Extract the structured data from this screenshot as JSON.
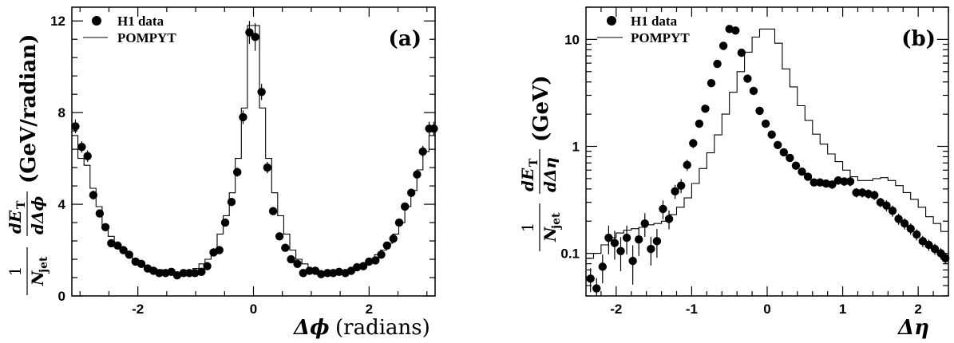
{
  "chart_data": [
    {
      "type": "scatter",
      "tag": "(a)",
      "legend": {
        "data_label": "H1 data",
        "model_label": "POMPYT",
        "position": "top-left"
      },
      "xlabel": {
        "symbol": "Δϕ",
        "unit": "(radians)"
      },
      "ylabel": {
        "prefix": "1",
        "denom": "N",
        "denom_sub": "jet",
        "num": "dE",
        "num_sub": "T",
        "den2": "dΔϕ",
        "unit": "(GeV/radian)"
      },
      "xlim": [
        -3.14159,
        3.14159
      ],
      "ylim": [
        0,
        12.6
      ],
      "yscale": "linear",
      "xticks": [
        -2,
        0,
        2
      ],
      "xtick_labels": [
        "-2",
        "0",
        "2"
      ],
      "yticks": [
        0,
        4,
        8,
        12
      ],
      "ytick_labels": [
        "0",
        "4",
        "8",
        "12"
      ],
      "series": [
        {
          "name": "H1 data",
          "marker": "circle",
          "x": [
            -3.08,
            -2.97,
            -2.87,
            -2.77,
            -2.66,
            -2.56,
            -2.46,
            -2.35,
            -2.25,
            -2.15,
            -2.04,
            -1.94,
            -1.83,
            -1.73,
            -1.63,
            -1.52,
            -1.42,
            -1.32,
            -1.21,
            -1.11,
            -1.01,
            -0.9,
            -0.8,
            -0.69,
            -0.59,
            -0.49,
            -0.38,
            -0.28,
            -0.18,
            -0.07,
            0.03,
            0.14,
            0.24,
            0.34,
            0.45,
            0.55,
            0.65,
            0.76,
            0.86,
            0.97,
            1.07,
            1.17,
            1.28,
            1.38,
            1.48,
            1.59,
            1.69,
            1.79,
            1.9,
            2.0,
            2.11,
            2.21,
            2.31,
            2.42,
            2.52,
            2.62,
            2.73,
            2.83,
            2.93,
            3.04,
            3.12
          ],
          "y": [
            7.4,
            6.5,
            6.1,
            4.4,
            3.6,
            3.0,
            2.3,
            2.2,
            2.0,
            1.8,
            1.5,
            1.4,
            1.2,
            1.1,
            1.0,
            1.0,
            1.05,
            0.9,
            1.0,
            1.0,
            1.0,
            1.05,
            1.3,
            1.9,
            2.0,
            3.2,
            4.1,
            5.4,
            7.8,
            11.5,
            11.3,
            8.9,
            5.6,
            3.7,
            2.6,
            2.1,
            1.6,
            1.4,
            1.0,
            1.1,
            1.1,
            0.95,
            1.0,
            1.0,
            1.05,
            1.0,
            1.1,
            1.25,
            1.3,
            1.5,
            1.55,
            1.8,
            2.2,
            2.5,
            3.2,
            3.9,
            4.5,
            5.3,
            6.3,
            7.3,
            7.3
          ],
          "err": [
            0.3,
            0.25,
            0.25,
            0.2,
            0.15,
            0.12,
            0.1,
            0.1,
            0.1,
            0.08,
            0.08,
            0.07,
            0.07,
            0.06,
            0.06,
            0.06,
            0.06,
            0.06,
            0.06,
            0.06,
            0.06,
            0.06,
            0.08,
            0.1,
            0.1,
            0.12,
            0.15,
            0.2,
            0.3,
            0.5,
            0.6,
            0.35,
            0.25,
            0.15,
            0.12,
            0.1,
            0.08,
            0.07,
            0.06,
            0.06,
            0.06,
            0.06,
            0.06,
            0.06,
            0.06,
            0.06,
            0.06,
            0.07,
            0.07,
            0.08,
            0.08,
            0.09,
            0.1,
            0.12,
            0.14,
            0.15,
            0.18,
            0.2,
            0.25,
            0.3,
            0.3
          ]
        },
        {
          "name": "POMPYT",
          "style": "histogram",
          "bin_edges": [
            -3.1416,
            -3.0369,
            -2.9322,
            -2.8274,
            -2.7227,
            -2.618,
            -2.5133,
            -2.4086,
            -2.3038,
            -2.1991,
            -2.0944,
            -1.9897,
            -1.885,
            -1.7802,
            -1.6755,
            -1.5708,
            -1.4661,
            -1.3614,
            -1.2566,
            -1.1519,
            -1.0472,
            -0.9425,
            -0.8378,
            -0.733,
            -0.6283,
            -0.5236,
            -0.4189,
            -0.3142,
            -0.2094,
            -0.1047,
            0.0,
            0.1047,
            0.2094,
            0.3142,
            0.4189,
            0.5236,
            0.6283,
            0.733,
            0.8378,
            0.9425,
            1.0472,
            1.1519,
            1.2566,
            1.3614,
            1.4661,
            1.5708,
            1.6755,
            1.7802,
            1.885,
            1.9897,
            2.0944,
            2.1991,
            2.3038,
            2.4086,
            2.5133,
            2.618,
            2.7227,
            2.8274,
            2.9322,
            3.0369,
            3.1416
          ],
          "values": [
            7.0,
            6.0,
            5.7,
            4.7,
            3.9,
            3.1,
            2.6,
            2.2,
            2.0,
            1.8,
            1.6,
            1.45,
            1.3,
            1.2,
            1.15,
            1.1,
            1.05,
            1.0,
            1.05,
            1.1,
            1.2,
            1.4,
            1.6,
            2.0,
            2.7,
            3.5,
            4.5,
            6.0,
            8.2,
            11.8,
            11.8,
            8.2,
            6.0,
            4.5,
            3.5,
            2.7,
            2.0,
            1.6,
            1.4,
            1.2,
            1.1,
            1.05,
            1.0,
            1.05,
            1.1,
            1.15,
            1.2,
            1.3,
            1.45,
            1.6,
            1.8,
            2.0,
            2.3,
            2.7,
            3.2,
            3.9,
            4.6,
            5.5,
            6.3,
            7.0
          ]
        }
      ]
    },
    {
      "type": "scatter",
      "tag": "(b)",
      "legend": {
        "data_label": "H1 data",
        "model_label": "POMPYT",
        "position": "top-left"
      },
      "xlabel": {
        "symbol": "Δη",
        "unit": ""
      },
      "ylabel": {
        "prefix": "1",
        "denom": "N",
        "denom_sub": "jet",
        "num": "dE",
        "num_sub": "T",
        "den2": "dΔη",
        "unit": "(GeV)"
      },
      "xlim": [
        -2.4,
        2.4
      ],
      "ylim": [
        0.04,
        20
      ],
      "yscale": "log",
      "xticks": [
        -2,
        -1,
        0,
        1,
        2
      ],
      "xtick_labels": [
        "-2",
        "-1",
        "0",
        "1",
        "2"
      ],
      "yticks": [
        0.1,
        1,
        10
      ],
      "ytick_labels": [
        "0.1",
        "1",
        "10"
      ],
      "series": [
        {
          "name": "H1 data",
          "marker": "circle",
          "x": [
            -2.34,
            -2.26,
            -2.18,
            -2.1,
            -2.02,
            -1.94,
            -1.86,
            -1.78,
            -1.7,
            -1.62,
            -1.54,
            -1.46,
            -1.38,
            -1.3,
            -1.22,
            -1.14,
            -1.06,
            -0.98,
            -0.9,
            -0.82,
            -0.74,
            -0.66,
            -0.58,
            -0.5,
            -0.42,
            -0.34,
            -0.26,
            -0.18,
            -0.1,
            -0.02,
            0.06,
            0.14,
            0.22,
            0.3,
            0.38,
            0.46,
            0.54,
            0.62,
            0.7,
            0.78,
            0.86,
            0.94,
            1.02,
            1.1,
            1.18,
            1.26,
            1.34,
            1.42,
            1.5,
            1.58,
            1.66,
            1.74,
            1.82,
            1.9,
            1.98,
            2.06,
            2.14,
            2.22,
            2.3,
            2.36
          ],
          "y": [
            0.058,
            0.047,
            0.075,
            0.14,
            0.125,
            0.105,
            0.14,
            0.085,
            0.135,
            0.19,
            0.11,
            0.13,
            0.26,
            0.21,
            0.38,
            0.43,
            0.67,
            1.07,
            1.63,
            2.25,
            3.9,
            5.9,
            8.7,
            12.5,
            12.1,
            7.5,
            4.3,
            3.3,
            2.15,
            1.63,
            1.29,
            1.03,
            0.88,
            0.78,
            0.66,
            0.58,
            0.52,
            0.46,
            0.46,
            0.45,
            0.44,
            0.48,
            0.47,
            0.47,
            0.37,
            0.37,
            0.36,
            0.35,
            0.3,
            0.28,
            0.25,
            0.21,
            0.19,
            0.17,
            0.15,
            0.13,
            0.12,
            0.11,
            0.1,
            0.09
          ],
          "err_frac": [
            0.25,
            0.25,
            0.3,
            0.3,
            0.3,
            0.35,
            0.3,
            0.4,
            0.3,
            0.25,
            0.3,
            0.3,
            0.2,
            0.2,
            0.15,
            0.15,
            0.12,
            0.1,
            0.08,
            0.07,
            0.06,
            0.05,
            0.05,
            0.05,
            0.05,
            0.05,
            0.05,
            0.05,
            0.06,
            0.06,
            0.06,
            0.07,
            0.07,
            0.07,
            0.07,
            0.08,
            0.08,
            0.08,
            0.08,
            0.08,
            0.09,
            0.09,
            0.09,
            0.1,
            0.1,
            0.1,
            0.1,
            0.1,
            0.1,
            0.12,
            0.12,
            0.12,
            0.12,
            0.12,
            0.12,
            0.12,
            0.12,
            0.12,
            0.12,
            0.12
          ]
        },
        {
          "name": "POMPYT",
          "style": "histogram",
          "bin_edges": [
            -2.4,
            -2.3,
            -2.2,
            -2.1,
            -2.0,
            -1.9,
            -1.8,
            -1.7,
            -1.6,
            -1.5,
            -1.4,
            -1.3,
            -1.2,
            -1.1,
            -1.0,
            -0.9,
            -0.8,
            -0.7,
            -0.6,
            -0.5,
            -0.4,
            -0.3,
            -0.2,
            -0.1,
            0.0,
            0.1,
            0.2,
            0.3,
            0.4,
            0.5,
            0.6,
            0.7,
            0.8,
            0.9,
            1.0,
            1.1,
            1.2,
            1.3,
            1.4,
            1.5,
            1.6,
            1.7,
            1.8,
            1.9,
            2.0,
            2.1,
            2.2,
            2.3,
            2.4
          ],
          "values": [
            0.09,
            0.1,
            0.12,
            0.14,
            0.155,
            0.165,
            0.17,
            0.175,
            0.185,
            0.19,
            0.2,
            0.23,
            0.27,
            0.33,
            0.45,
            0.62,
            0.87,
            1.28,
            2.0,
            3.2,
            5.0,
            7.6,
            10.5,
            12.5,
            12.5,
            9.2,
            5.3,
            3.6,
            2.4,
            1.75,
            1.3,
            1.05,
            0.85,
            0.72,
            0.6,
            0.52,
            0.48,
            0.48,
            0.5,
            0.51,
            0.48,
            0.43,
            0.37,
            0.32,
            0.27,
            0.22,
            0.19,
            0.16
          ]
        }
      ]
    }
  ]
}
